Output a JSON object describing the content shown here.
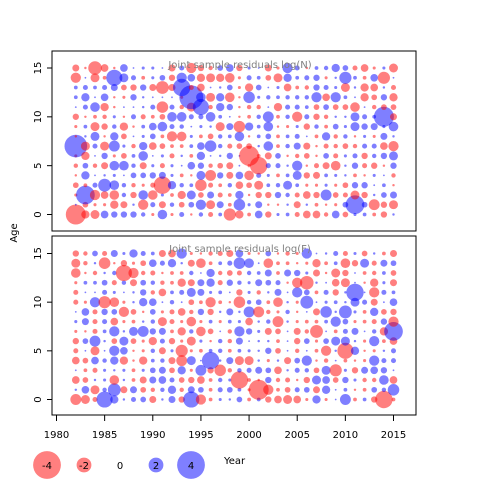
{
  "chart_data": {
    "type": "scatter",
    "description_kind": "bubble residual plot",
    "ylabel": "Age",
    "legend_title": "Year",
    "colors": {
      "positive": "#0000ff",
      "negative": "#ff0000",
      "frame": "#000000",
      "panel_title": "#808080"
    },
    "bubble_alpha": 0.5,
    "x_range": [
      1982,
      2015
    ],
    "x_ticks": [
      1980,
      1985,
      1990,
      1995,
      2000,
      2005,
      2010,
      2015
    ],
    "y_range": [
      0,
      15
    ],
    "y_ticks": [
      0,
      5,
      10,
      15
    ],
    "legend": [
      {
        "label": "-4",
        "value": -4
      },
      {
        "label": "-2",
        "value": -2
      },
      {
        "label": "0",
        "value": 0
      },
      {
        "label": "2",
        "value": 2
      },
      {
        "label": "4",
        "value": 4
      }
    ],
    "panels": [
      {
        "title": "Joint sample residuals log(N)",
        "seed": 17,
        "highlights": [
          {
            "x": 1982,
            "y": 7,
            "v": 3.2
          },
          {
            "x": 1982,
            "y": 0,
            "v": -2.8
          },
          {
            "x": 1983,
            "y": 2,
            "v": 2.6
          },
          {
            "x": 1994,
            "y": 12,
            "v": 3.4
          },
          {
            "x": 1993,
            "y": 13,
            "v": 2.4
          },
          {
            "x": 1995,
            "y": 11,
            "v": 2.2
          },
          {
            "x": 2000,
            "y": 6,
            "v": -2.8
          },
          {
            "x": 2001,
            "y": 5,
            "v": -2.4
          },
          {
            "x": 2014,
            "y": 10,
            "v": 2.8
          },
          {
            "x": 2011,
            "y": 1,
            "v": 2.6
          },
          {
            "x": 1991,
            "y": 3,
            "v": -2.4
          },
          {
            "x": 1986,
            "y": 14,
            "v": 2.2
          }
        ]
      },
      {
        "title": "Joint sample residuals log(F)",
        "seed": 53,
        "highlights": [
          {
            "x": 2015,
            "y": 7,
            "v": 2.6
          },
          {
            "x": 2014,
            "y": 0,
            "v": -2.4
          },
          {
            "x": 1999,
            "y": 2,
            "v": -2.4
          },
          {
            "x": 1996,
            "y": 4,
            "v": 2.4
          },
          {
            "x": 1987,
            "y": 13,
            "v": -2.2
          },
          {
            "x": 1985,
            "y": 0,
            "v": 2.2
          },
          {
            "x": 2011,
            "y": 11,
            "v": 2.4
          },
          {
            "x": 1994,
            "y": 0,
            "v": 2.2
          },
          {
            "x": 2001,
            "y": 1,
            "v": -2.8
          },
          {
            "x": 2010,
            "y": 5,
            "v": -2.2
          }
        ]
      }
    ]
  }
}
